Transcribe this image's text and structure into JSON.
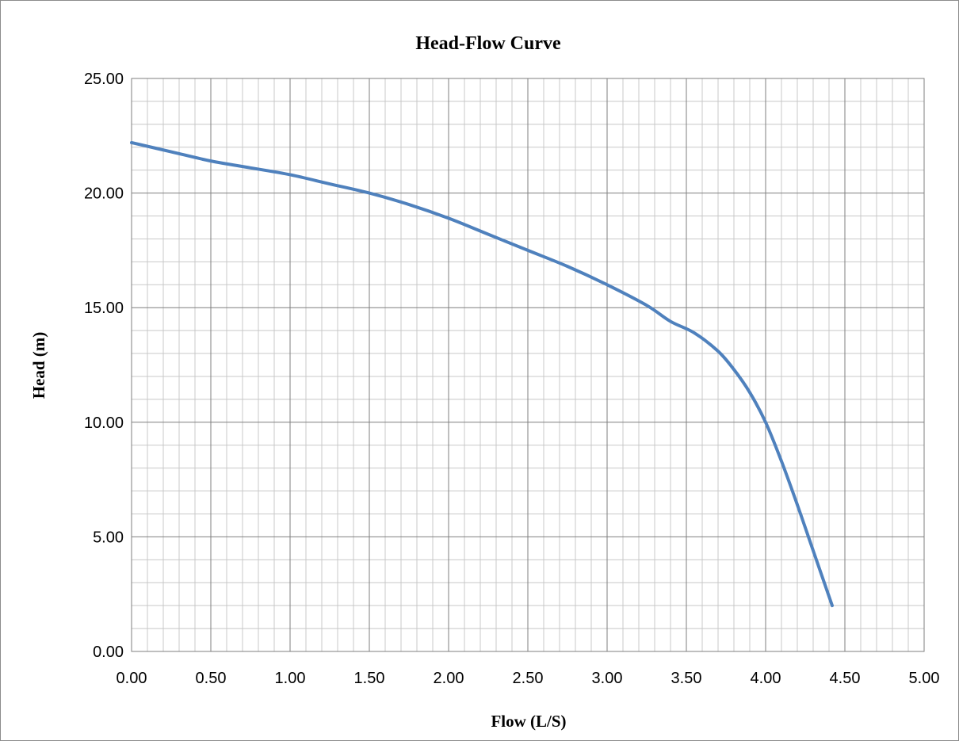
{
  "chart_data": {
    "type": "line",
    "title": "Head-Flow Curve",
    "xlabel": "Flow (L/S)",
    "ylabel": "Head (m)",
    "xlim": [
      0,
      5
    ],
    "ylim": [
      0,
      25
    ],
    "x_ticks": [
      "0.00",
      "0.50",
      "1.00",
      "1.50",
      "2.00",
      "2.50",
      "3.00",
      "3.50",
      "4.00",
      "4.50",
      "5.00"
    ],
    "y_ticks": [
      "0.00",
      "5.00",
      "10.00",
      "15.00",
      "20.00",
      "25.00"
    ],
    "grid": true,
    "legend": "none",
    "line_color": "#4f81bd",
    "series": [
      {
        "x": [
          0.0,
          0.25,
          0.5,
          0.75,
          1.0,
          1.25,
          1.5,
          1.75,
          2.0,
          2.25,
          2.5,
          2.75,
          3.0,
          3.25,
          3.4,
          3.55,
          3.7,
          3.8,
          3.9,
          4.0,
          4.1,
          4.2,
          4.3,
          4.42
        ],
        "y": [
          22.2,
          21.8,
          21.4,
          21.1,
          20.8,
          20.4,
          20.0,
          19.5,
          18.9,
          18.2,
          17.5,
          16.8,
          16.0,
          15.1,
          14.4,
          13.9,
          13.1,
          12.3,
          11.3,
          10.0,
          8.3,
          6.4,
          4.4,
          2.0
        ]
      }
    ]
  }
}
